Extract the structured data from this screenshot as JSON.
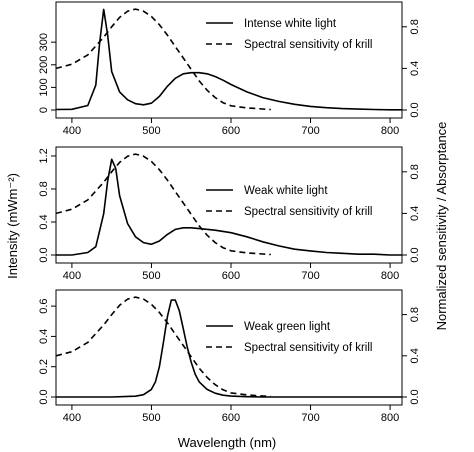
{
  "figure": {
    "ylabel_left": "Intensity (mWm⁻²)",
    "ylabel_right": "Normalized sensitivity / Absorptance",
    "xlabel": "Wavelength (nm)"
  },
  "chart_data": [
    {
      "type": "line",
      "xlim": [
        380,
        815
      ],
      "ylim_left": [
        0,
        460
      ],
      "ylim_right": [
        0,
        1.0
      ],
      "xticks": [
        "400",
        "500",
        "600",
        "700",
        "800"
      ],
      "yticks_left": [
        "0",
        "100",
        "200",
        "300"
      ],
      "yticks_right": [
        "0.0",
        "0.4",
        "0.8"
      ],
      "legend_position": "top-right",
      "series": [
        {
          "name": "Intense white light",
          "style": "solid",
          "axis": "left",
          "x": [
            380,
            400,
            420,
            430,
            435,
            440,
            445,
            450,
            460,
            470,
            480,
            490,
            500,
            510,
            520,
            530,
            540,
            550,
            560,
            570,
            580,
            590,
            600,
            620,
            640,
            660,
            680,
            700,
            720,
            740,
            760,
            780,
            800,
            815
          ],
          "y": [
            2,
            3,
            20,
            110,
            300,
            445,
            330,
            170,
            80,
            45,
            28,
            23,
            30,
            60,
            105,
            140,
            160,
            165,
            165,
            160,
            148,
            132,
            113,
            80,
            55,
            38,
            25,
            16,
            10,
            6,
            4,
            2,
            1,
            1
          ]
        },
        {
          "name": "Spectral sensitivity of krill",
          "style": "dashed",
          "axis": "right",
          "x": [
            380,
            400,
            420,
            440,
            450,
            460,
            470,
            480,
            490,
            500,
            510,
            520,
            530,
            540,
            550,
            560,
            570,
            580,
            590,
            600,
            620,
            640,
            650
          ],
          "y": [
            0.4,
            0.44,
            0.53,
            0.7,
            0.8,
            0.89,
            0.95,
            0.97,
            0.95,
            0.9,
            0.82,
            0.72,
            0.61,
            0.5,
            0.39,
            0.28,
            0.19,
            0.12,
            0.07,
            0.04,
            0.02,
            0.01,
            0.005
          ]
        }
      ]
    },
    {
      "type": "line",
      "xlim": [
        380,
        815
      ],
      "ylim_left": [
        0,
        1.26
      ],
      "ylim_right": [
        0,
        1.0
      ],
      "xticks": [
        "400",
        "500",
        "600",
        "700",
        "800"
      ],
      "yticks_left": [
        "0.0",
        "0.4",
        "0.8",
        "1.2"
      ],
      "yticks_right": [
        "0.0",
        "0.4",
        "0.8"
      ],
      "legend_position": "center-right",
      "series": [
        {
          "name": "Weak white light",
          "style": "solid",
          "axis": "left",
          "x": [
            380,
            400,
            420,
            430,
            440,
            445,
            450,
            455,
            460,
            470,
            480,
            490,
            500,
            510,
            520,
            530,
            540,
            550,
            560,
            580,
            600,
            620,
            640,
            660,
            680,
            700,
            720,
            740,
            760,
            780,
            800,
            815
          ],
          "y": [
            0.0,
            0.0,
            0.03,
            0.1,
            0.5,
            0.9,
            1.16,
            1.05,
            0.72,
            0.38,
            0.22,
            0.15,
            0.13,
            0.17,
            0.25,
            0.31,
            0.33,
            0.33,
            0.32,
            0.3,
            0.27,
            0.22,
            0.16,
            0.11,
            0.07,
            0.05,
            0.03,
            0.02,
            0.01,
            0.01,
            0.0,
            0.0
          ]
        },
        {
          "name": "Spectral sensitivity of krill",
          "style": "dashed",
          "axis": "right",
          "x": [
            380,
            400,
            420,
            440,
            450,
            460,
            470,
            480,
            490,
            500,
            510,
            520,
            530,
            540,
            550,
            560,
            570,
            580,
            590,
            600,
            620,
            640,
            650
          ],
          "y": [
            0.4,
            0.44,
            0.53,
            0.7,
            0.8,
            0.89,
            0.95,
            0.97,
            0.95,
            0.9,
            0.82,
            0.72,
            0.61,
            0.5,
            0.39,
            0.28,
            0.19,
            0.12,
            0.07,
            0.04,
            0.02,
            0.01,
            0.005
          ]
        }
      ]
    },
    {
      "type": "line",
      "xlim": [
        380,
        815
      ],
      "ylim_left": [
        0,
        0.68
      ],
      "ylim_right": [
        0,
        1.0
      ],
      "xticks": [
        "400",
        "500",
        "600",
        "700",
        "800"
      ],
      "yticks_left": [
        "0.0",
        "0.2",
        "0.4",
        "0.6"
      ],
      "yticks_right": [
        "0.0",
        "0.4",
        "0.8"
      ],
      "legend_position": "center-right",
      "series": [
        {
          "name": "Weak green light",
          "style": "solid",
          "axis": "left",
          "x": [
            380,
            450,
            480,
            490,
            500,
            505,
            510,
            515,
            520,
            525,
            530,
            535,
            540,
            545,
            550,
            555,
            560,
            570,
            580,
            590,
            600,
            620,
            640,
            660,
            700,
            800,
            815
          ],
          "y": [
            0.0,
            0.0,
            0.005,
            0.015,
            0.05,
            0.1,
            0.2,
            0.36,
            0.53,
            0.64,
            0.64,
            0.57,
            0.45,
            0.33,
            0.23,
            0.15,
            0.1,
            0.05,
            0.025,
            0.012,
            0.006,
            0.002,
            0.0,
            0.0,
            0.0,
            0.0,
            0.0
          ]
        },
        {
          "name": "Spectral sensitivity of krill",
          "style": "dashed",
          "axis": "right",
          "x": [
            380,
            400,
            420,
            440,
            450,
            460,
            470,
            480,
            490,
            500,
            510,
            520,
            530,
            540,
            550,
            560,
            570,
            580,
            590,
            600,
            620,
            640,
            650
          ],
          "y": [
            0.4,
            0.44,
            0.53,
            0.7,
            0.8,
            0.89,
            0.95,
            0.97,
            0.95,
            0.9,
            0.82,
            0.72,
            0.61,
            0.5,
            0.39,
            0.28,
            0.19,
            0.12,
            0.07,
            0.04,
            0.02,
            0.01,
            0.005
          ]
        }
      ]
    }
  ]
}
